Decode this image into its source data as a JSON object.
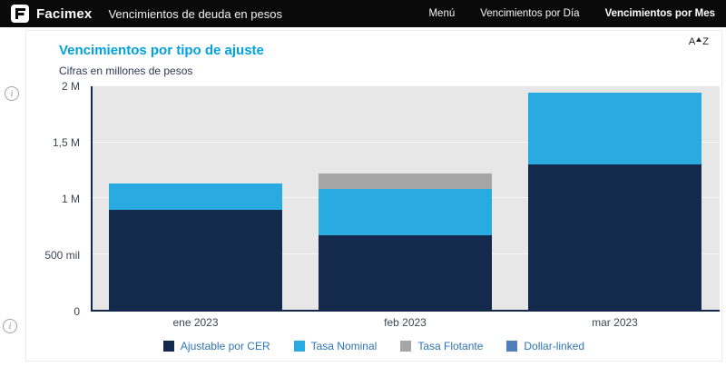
{
  "header": {
    "brand": "Facimex",
    "subtitle": "Vencimientos de deuda en pesos",
    "nav": [
      {
        "label": "Menú",
        "active": false
      },
      {
        "label": "Vencimientos por Día",
        "active": false
      },
      {
        "label": "Vencimientos por Mes",
        "active": true
      }
    ]
  },
  "report": {
    "title": "Vencimientos por tipo de ajuste",
    "subtitle": "Cifras en millones de pesos"
  },
  "icons": {
    "sort_a": "A",
    "sort_z": "Z",
    "info": "i"
  },
  "colors": {
    "accent_title": "#00A1E0",
    "header_bg": "#0a0a0a",
    "plot_bg": "#e7e7e7",
    "axis": "#142A4D",
    "legend_text": "#2E74B5"
  },
  "chart_data": {
    "type": "bar",
    "stacked": true,
    "title": "Vencimientos por tipo de ajuste",
    "subtitle": "Cifras en millones de pesos",
    "units": "millones de pesos",
    "categories": [
      "ene 2023",
      "feb 2023",
      "mar 2023"
    ],
    "series": [
      {
        "name": "Ajustable por CER",
        "color": "#142A4D",
        "values": [
          0.9,
          0.68,
          1.31
        ]
      },
      {
        "name": "Tasa Nominal",
        "color": "#29ABE2",
        "values": [
          0.24,
          0.41,
          0.63
        ]
      },
      {
        "name": "Tasa Flotante",
        "color": "#A6A6A6",
        "values": [
          0.0,
          0.14,
          0.0
        ]
      },
      {
        "name": "Dollar-linked",
        "color": "#4E7FBA",
        "values": [
          0.0,
          0.0,
          0.0
        ]
      }
    ],
    "ylim": [
      0,
      2
    ],
    "yticks": [
      {
        "value": 0.0,
        "label": "0"
      },
      {
        "value": 0.5,
        "label": "500 mil"
      },
      {
        "value": 1.0,
        "label": "1 M"
      },
      {
        "value": 1.5,
        "label": "1,5 M"
      },
      {
        "value": 2.0,
        "label": "2 M"
      }
    ],
    "grid": true,
    "legend_position": "bottom"
  }
}
